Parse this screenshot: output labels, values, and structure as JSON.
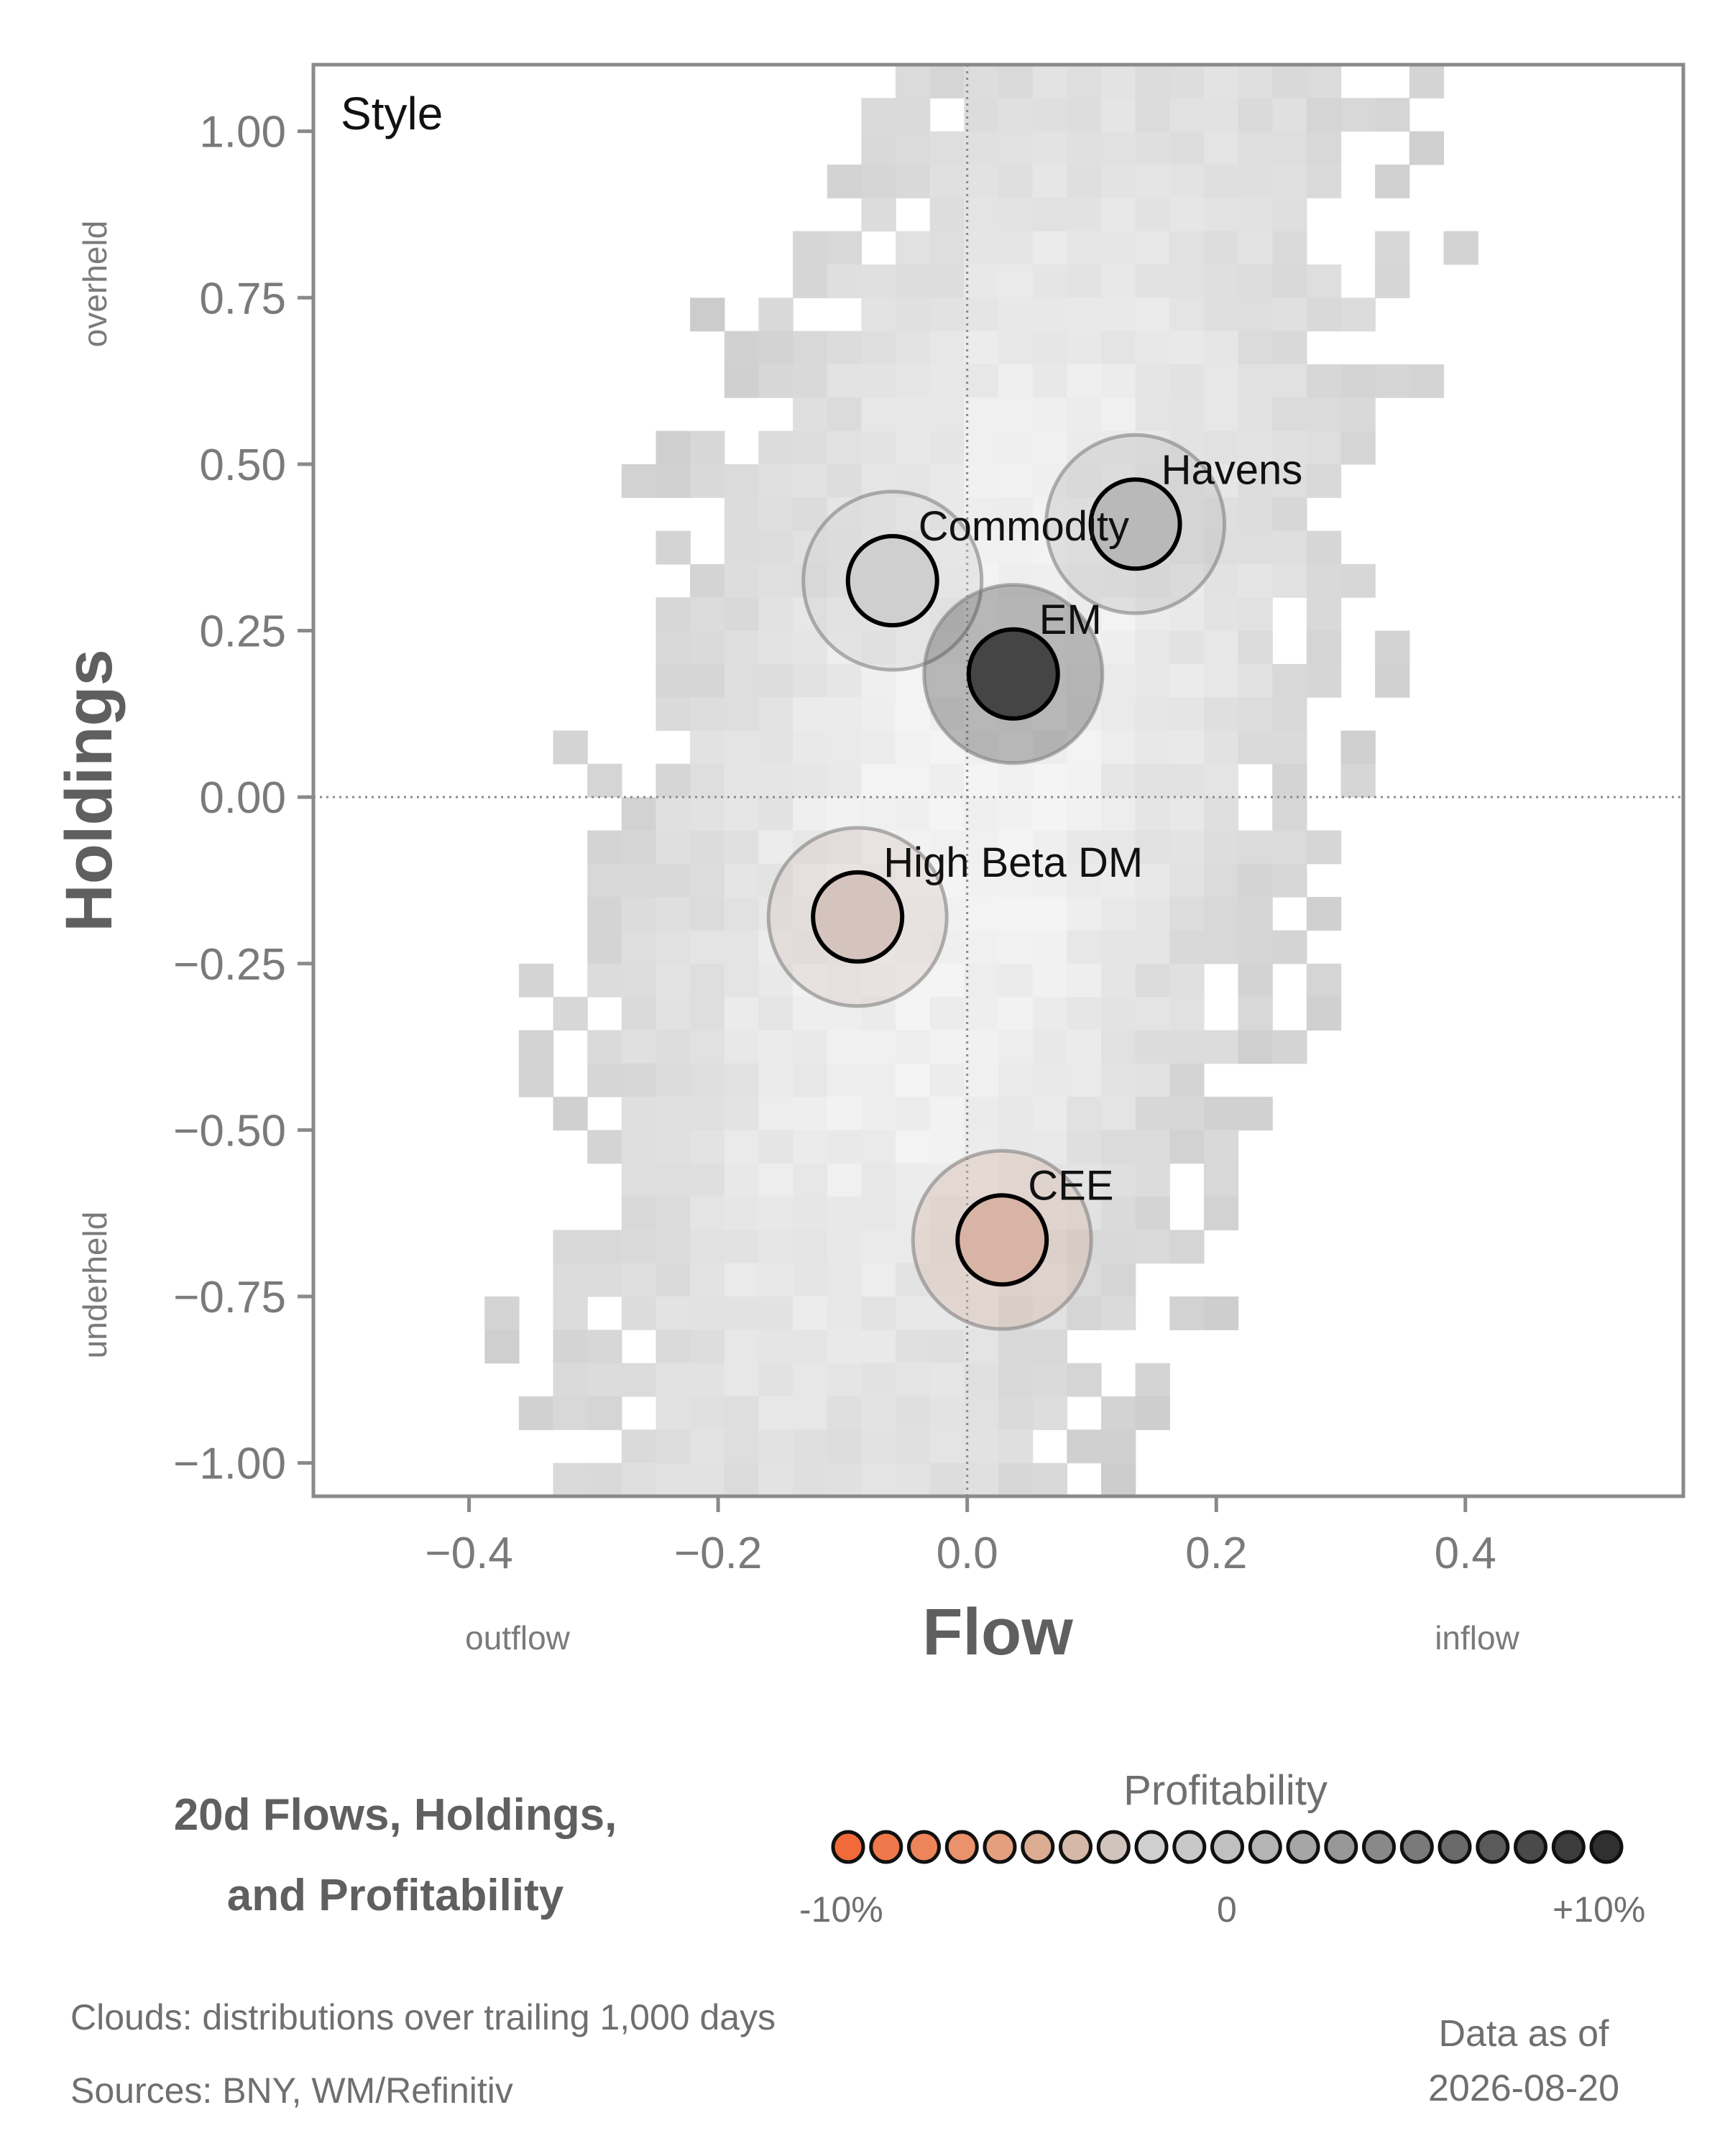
{
  "chart_data": {
    "type": "scatter",
    "corner_label": "Style",
    "xlabel": "Flow",
    "ylabel": "Holdings",
    "xlim": [
      -0.525,
      0.575
    ],
    "ylim": [
      -1.05,
      1.1
    ],
    "x_ticks": [
      -0.4,
      -0.2,
      0.0,
      0.2,
      0.4
    ],
    "x_tick_labels": [
      "−0.4",
      "−0.2",
      "0.0",
      "0.2",
      "0.4"
    ],
    "y_ticks": [
      1.0,
      0.75,
      0.5,
      0.25,
      0.0,
      -0.25,
      -0.5,
      -0.75,
      -1.0
    ],
    "y_tick_labels": [
      "1.00",
      "0.75",
      "0.50",
      "0.25",
      "0.00",
      "−0.25",
      "−0.50",
      "−0.75",
      "−1.00"
    ],
    "x_side_labels": {
      "left": "outflow",
      "right": "inflow"
    },
    "y_side_labels": {
      "top": "overheld",
      "bottom": "underheld"
    },
    "reference_lines": {
      "x": 0.0,
      "y": 0.0
    },
    "points": [
      {
        "name": "Havens",
        "x": 0.135,
        "y": 0.41,
        "profitability": 3,
        "color": "#b9b9b9"
      },
      {
        "name": "Commodity",
        "x": -0.06,
        "y": 0.325,
        "profitability": 1,
        "color": "#cfcfcf"
      },
      {
        "name": "EM",
        "x": 0.037,
        "y": 0.185,
        "profitability": 10,
        "color": "#454545"
      },
      {
        "name": "High Beta DM",
        "x": -0.088,
        "y": -0.18,
        "profitability": -2,
        "color": "#d4c4bd"
      },
      {
        "name": "CEE",
        "x": 0.028,
        "y": -0.665,
        "profitability": -4,
        "color": "#d8b4a6"
      }
    ],
    "colors": {
      "axis": "#8a8a8a",
      "cloud_dark": "#c8c8c8",
      "cloud_light": "#f4f4f4"
    }
  },
  "legend": {
    "title_line1": "20d Flows, Holdings,",
    "title_line2": "and Profitability",
    "profitability_title": "Profitability",
    "scale_min_label": "-10%",
    "scale_mid_label": "0",
    "scale_max_label": "+10%",
    "scale_colors": [
      "#f26a3a",
      "#f0774a",
      "#ed855b",
      "#e9926c",
      "#e49f7e",
      "#dcac92",
      "#d5b8a7",
      "#d1c4bc",
      "#cfcfcf",
      "#c8c8c8",
      "#c0c0c0",
      "#b4b4b4",
      "#a6a6a6",
      "#989898",
      "#898989",
      "#7a7a7a",
      "#6a6a6a",
      "#5a5a5a",
      "#4a4a4a",
      "#3c3c3c",
      "#303030"
    ]
  },
  "footer": {
    "clouds_note": "Clouds:  distributions over trailing 1,000 days",
    "sources_note": "Sources:  BNY, WM/Refinitiv",
    "asof_line1": "Data as of",
    "asof_line2": "2026-08-20"
  }
}
